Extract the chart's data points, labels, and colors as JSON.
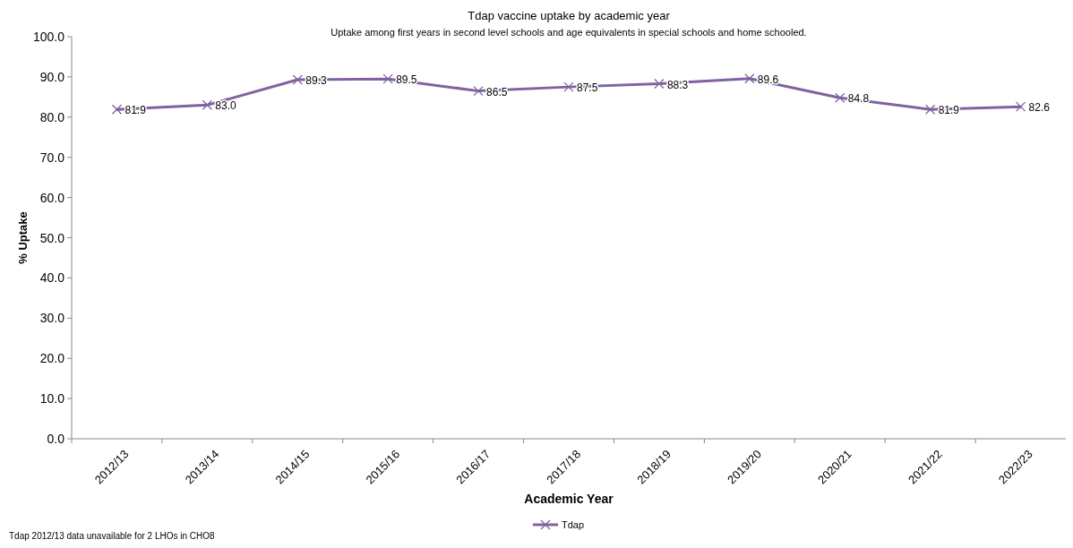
{
  "chart_data": {
    "type": "line",
    "title": "Tdap vaccine uptake by academic year",
    "subtitle": "Uptake among first years in second level schools and age equivalents in special schools and home schooled.",
    "xlabel": "Academic Year",
    "ylabel": "% Uptake",
    "categories": [
      "2012/13",
      "2013/14",
      "2014/15",
      "2015/16",
      "2016/17",
      "2017/18",
      "2018/19",
      "2019/20",
      "2020/21",
      "2021/22",
      "2022/23"
    ],
    "series": [
      {
        "name": "Tdap",
        "color": "#7f63a1",
        "values": [
          81.9,
          83.0,
          89.3,
          89.5,
          86.5,
          87.5,
          88.3,
          89.6,
          84.8,
          81.9,
          82.6
        ],
        "value_labels": [
          "81.9",
          "83.0",
          "89.3",
          "89.5",
          "86.5",
          "87.5",
          "88.3",
          "89.6",
          "84.8",
          "81.9",
          "82.6"
        ]
      }
    ],
    "ylim": [
      0,
      100
    ],
    "yticks": [
      {
        "value": 0,
        "label": "0.0"
      },
      {
        "value": 10,
        "label": "10.0"
      },
      {
        "value": 20,
        "label": "20.0"
      },
      {
        "value": 30,
        "label": "30.0"
      },
      {
        "value": 40,
        "label": "40.0"
      },
      {
        "value": 50,
        "label": "50.0"
      },
      {
        "value": 60,
        "label": "60.0"
      },
      {
        "value": 70,
        "label": "70.0"
      },
      {
        "value": 80,
        "label": "80.0"
      },
      {
        "value": 90,
        "label": "90.0"
      },
      {
        "value": 100,
        "label": "100.0"
      }
    ],
    "marker": "cross",
    "line_style": "solid",
    "legend": "bottom",
    "annotations": [
      "Tdap 2012/13 data unavailable for 2 LHOs in CHO8"
    ]
  }
}
